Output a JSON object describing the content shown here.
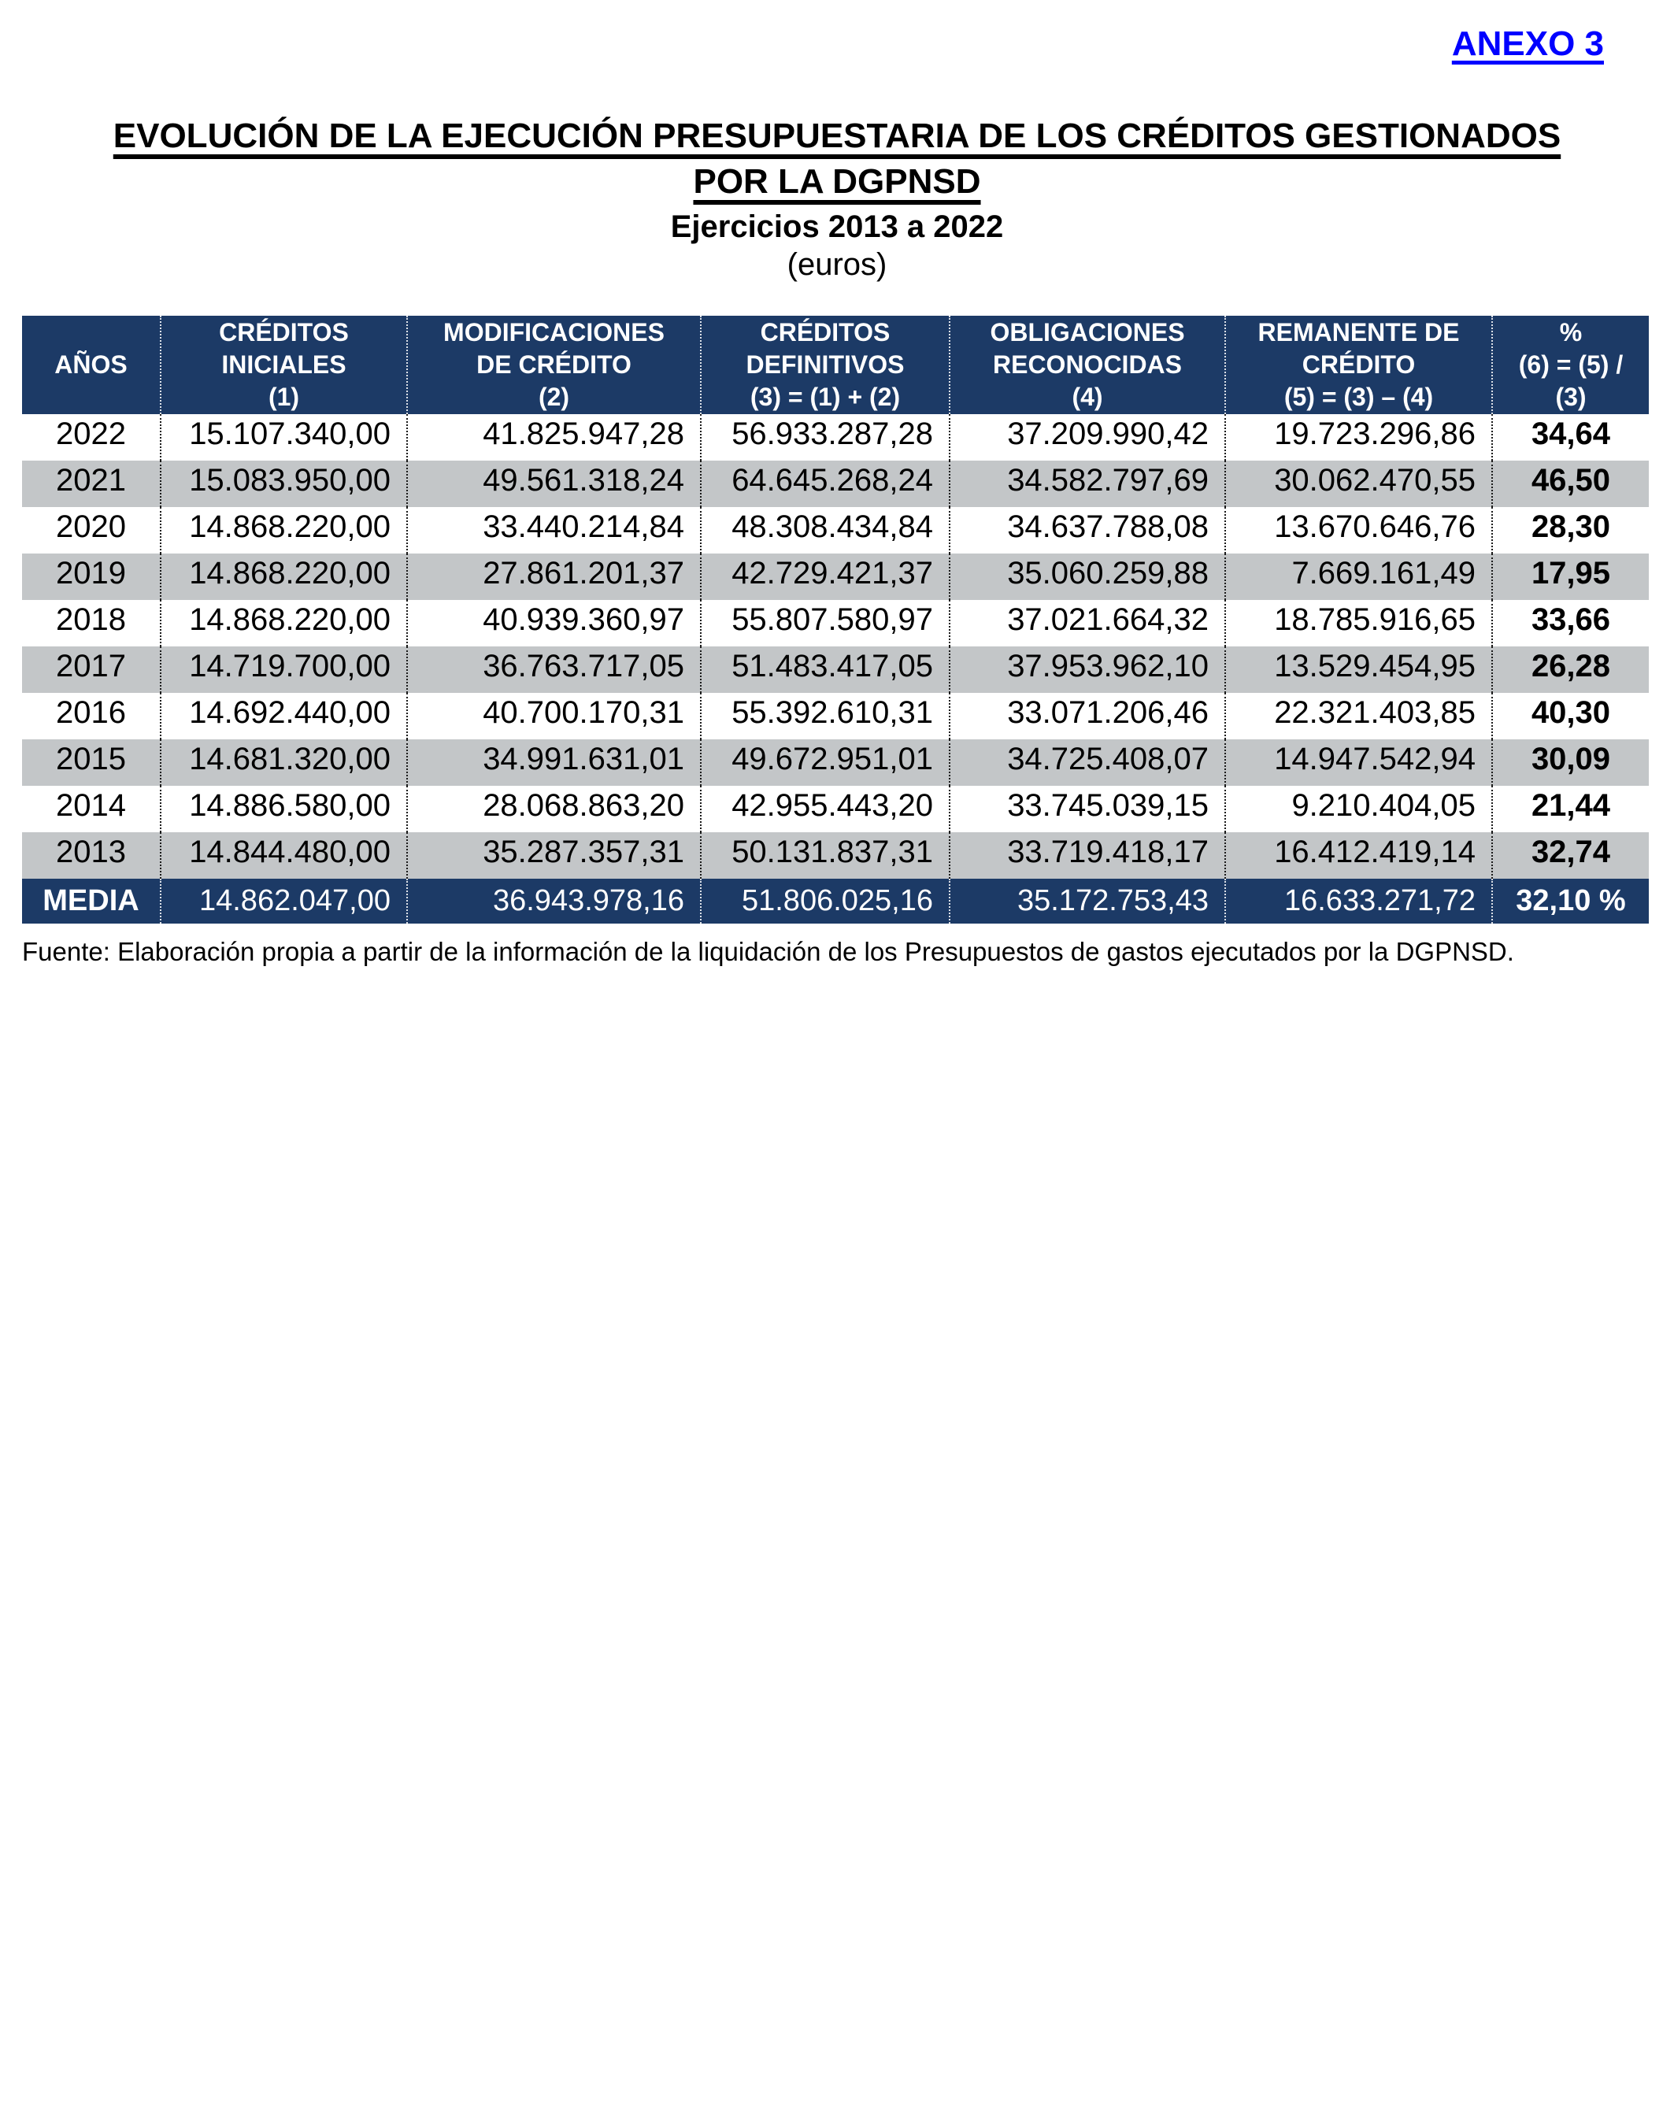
{
  "page": {
    "annex_label": "ANEXO 3",
    "title_lines": [
      "EVOLUCIÓN DE LA EJECUCIÓN PRESUPUESTARIA DE LOS CRÉDITOS GESTIONADOS",
      "POR LA DGPNSD"
    ],
    "subtitle": "Ejercicios 2013 a 2022",
    "unit_label": "(euros)",
    "source_note": "Fuente: Elaboración propia a partir de la información de la liquidación de los Presupuestos de gastos ejecutados por la DGPNSD."
  },
  "colors": {
    "header_bg": "#1C3A66",
    "row_alt_bg": "#C3C6C8",
    "annex_blue": "#0000FF",
    "header_text": "#FFFFFF",
    "body_text": "#000000"
  },
  "table": {
    "headers": [
      {
        "lines": [
          "AÑOS"
        ]
      },
      {
        "lines": [
          "CRÉDITOS",
          "INICIALES",
          "(1)"
        ]
      },
      {
        "lines": [
          "MODIFICACIONES",
          "DE CRÉDITO",
          "(2)"
        ]
      },
      {
        "lines": [
          "CRÉDITOS",
          "DEFINITIVOS",
          "(3) = (1) + (2)"
        ]
      },
      {
        "lines": [
          "OBLIGACIONES",
          "RECONOCIDAS",
          "(4)"
        ]
      },
      {
        "lines": [
          "REMANENTE DE",
          "CRÉDITO",
          "(5) = (3) – (4)"
        ]
      },
      {
        "lines": [
          "%",
          "(6) = (5) /",
          "(3)"
        ]
      }
    ],
    "rows": [
      {
        "year": "2022",
        "values": [
          "15.107.340,00",
          "41.825.947,28",
          "56.933.287,28",
          "37.209.990,42",
          "19.723.296,86"
        ],
        "pct": "34,64"
      },
      {
        "year": "2021",
        "values": [
          "15.083.950,00",
          "49.561.318,24",
          "64.645.268,24",
          "34.582.797,69",
          "30.062.470,55"
        ],
        "pct": "46,50"
      },
      {
        "year": "2020",
        "values": [
          "14.868.220,00",
          "33.440.214,84",
          "48.308.434,84",
          "34.637.788,08",
          "13.670.646,76"
        ],
        "pct": "28,30"
      },
      {
        "year": "2019",
        "values": [
          "14.868.220,00",
          "27.861.201,37",
          "42.729.421,37",
          "35.060.259,88",
          "7.669.161,49"
        ],
        "pct": "17,95"
      },
      {
        "year": "2018",
        "values": [
          "14.868.220,00",
          "40.939.360,97",
          "55.807.580,97",
          "37.021.664,32",
          "18.785.916,65"
        ],
        "pct": "33,66"
      },
      {
        "year": "2017",
        "values": [
          "14.719.700,00",
          "36.763.717,05",
          "51.483.417,05",
          "37.953.962,10",
          "13.529.454,95"
        ],
        "pct": "26,28"
      },
      {
        "year": "2016",
        "values": [
          "14.692.440,00",
          "40.700.170,31",
          "55.392.610,31",
          "33.071.206,46",
          "22.321.403,85"
        ],
        "pct": "40,30"
      },
      {
        "year": "2015",
        "values": [
          "14.681.320,00",
          "34.991.631,01",
          "49.672.951,01",
          "34.725.408,07",
          "14.947.542,94"
        ],
        "pct": "30,09"
      },
      {
        "year": "2014",
        "values": [
          "14.886.580,00",
          "28.068.863,20",
          "42.955.443,20",
          "33.745.039,15",
          "9.210.404,05"
        ],
        "pct": "21,44"
      },
      {
        "year": "2013",
        "values": [
          "14.844.480,00",
          "35.287.357,31",
          "50.131.837,31",
          "33.719.418,17",
          "16.412.419,14"
        ],
        "pct": "32,74"
      }
    ],
    "footer_row": {
      "label": "MEDIA",
      "values": [
        "14.862.047,00",
        "36.943.978,16",
        "51.806.025,16",
        "35.172.753,43",
        "16.633.271,72"
      ],
      "pct": "32,10 %"
    }
  }
}
